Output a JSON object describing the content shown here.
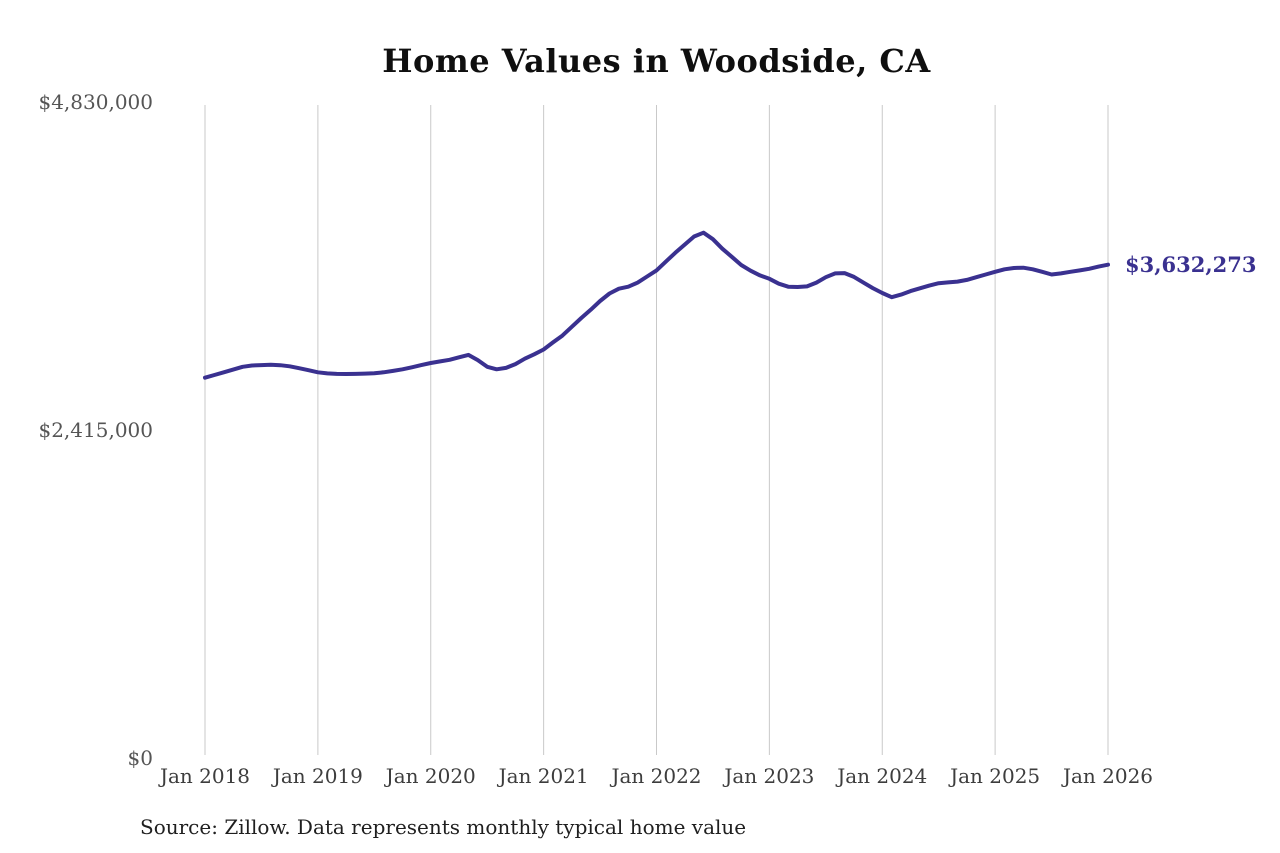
{
  "title": "Home Values in Woodside, CA",
  "source_note": "Source: Zillow. Data represents monthly typical home value",
  "end_label": "$3,632,273",
  "colors": {
    "line": "#3a3190",
    "end_label": "#3a3190",
    "gridline": "#c9c9c9",
    "title": "#0f0f0f",
    "y_axis_label": "#555555",
    "x_axis_label": "#3d3d3d",
    "source": "#1f1f1f",
    "background": "#ffffff"
  },
  "chart_data": {
    "type": "line",
    "title": "Home Values in Woodside, CA",
    "xlabel": "",
    "ylabel": "",
    "grid": "vertical-only",
    "legend": "none",
    "ylim": [
      0,
      4830000
    ],
    "y_ticks": [
      {
        "value": 0,
        "label": "$0"
      },
      {
        "value": 2415000,
        "label": "$2,415,000"
      },
      {
        "value": 4830000,
        "label": "$4,830,000"
      }
    ],
    "x_ticks": [
      "Jan 2018",
      "Jan 2019",
      "Jan 2020",
      "Jan 2021",
      "Jan 2022",
      "Jan 2023",
      "Jan 2024",
      "Jan 2025",
      "Jan 2026"
    ],
    "x": [
      "2018-01",
      "2018-02",
      "2018-03",
      "2018-04",
      "2018-05",
      "2018-06",
      "2018-07",
      "2018-08",
      "2018-09",
      "2018-10",
      "2018-11",
      "2018-12",
      "2019-01",
      "2019-02",
      "2019-03",
      "2019-04",
      "2019-05",
      "2019-06",
      "2019-07",
      "2019-08",
      "2019-09",
      "2019-10",
      "2019-11",
      "2019-12",
      "2020-01",
      "2020-02",
      "2020-03",
      "2020-04",
      "2020-05",
      "2020-06",
      "2020-07",
      "2020-08",
      "2020-09",
      "2020-10",
      "2020-11",
      "2020-12",
      "2021-01",
      "2021-02",
      "2021-03",
      "2021-04",
      "2021-05",
      "2021-06",
      "2021-07",
      "2021-08",
      "2021-09",
      "2021-10",
      "2021-11",
      "2021-12",
      "2022-01",
      "2022-02",
      "2022-03",
      "2022-04",
      "2022-05",
      "2022-06",
      "2022-07",
      "2022-08",
      "2022-09",
      "2022-10",
      "2022-11",
      "2022-12",
      "2023-01",
      "2023-02",
      "2023-03",
      "2023-04",
      "2023-05",
      "2023-06",
      "2023-07",
      "2023-08",
      "2023-09",
      "2023-10",
      "2023-11",
      "2023-12",
      "2024-01",
      "2024-02",
      "2024-03",
      "2024-04",
      "2024-05",
      "2024-06",
      "2024-07",
      "2024-08",
      "2024-09",
      "2024-10",
      "2024-11",
      "2024-12",
      "2025-01",
      "2025-02",
      "2025-03",
      "2025-04",
      "2025-05",
      "2025-06",
      "2025-07",
      "2025-08",
      "2025-09",
      "2025-10",
      "2025-11",
      "2025-12",
      "2026-01"
    ],
    "values": [
      2800000,
      2820000,
      2840000,
      2860000,
      2880000,
      2890000,
      2893000,
      2895000,
      2892000,
      2884000,
      2870000,
      2855000,
      2840000,
      2832000,
      2828000,
      2827000,
      2828000,
      2830000,
      2833000,
      2840000,
      2850000,
      2862000,
      2877000,
      2893000,
      2908000,
      2920000,
      2932000,
      2950000,
      2968000,
      2930000,
      2880000,
      2862000,
      2872000,
      2900000,
      2940000,
      2972000,
      3008000,
      3060000,
      3110000,
      3175000,
      3240000,
      3300000,
      3365000,
      3420000,
      3455000,
      3470000,
      3500000,
      3545000,
      3590000,
      3655000,
      3720000,
      3780000,
      3840000,
      3868000,
      3820000,
      3750000,
      3690000,
      3630000,
      3588000,
      3553000,
      3528000,
      3492000,
      3470000,
      3468000,
      3472000,
      3500000,
      3540000,
      3568000,
      3570000,
      3542000,
      3500000,
      3460000,
      3424000,
      3393000,
      3412000,
      3438000,
      3458000,
      3478000,
      3496000,
      3502000,
      3508000,
      3520000,
      3540000,
      3560000,
      3580000,
      3598000,
      3608000,
      3610000,
      3598000,
      3580000,
      3560000,
      3568000,
      3580000,
      3590000,
      3602000,
      3618000,
      3632273
    ],
    "last_value": 3632273,
    "last_value_label": "$3,632,273"
  }
}
